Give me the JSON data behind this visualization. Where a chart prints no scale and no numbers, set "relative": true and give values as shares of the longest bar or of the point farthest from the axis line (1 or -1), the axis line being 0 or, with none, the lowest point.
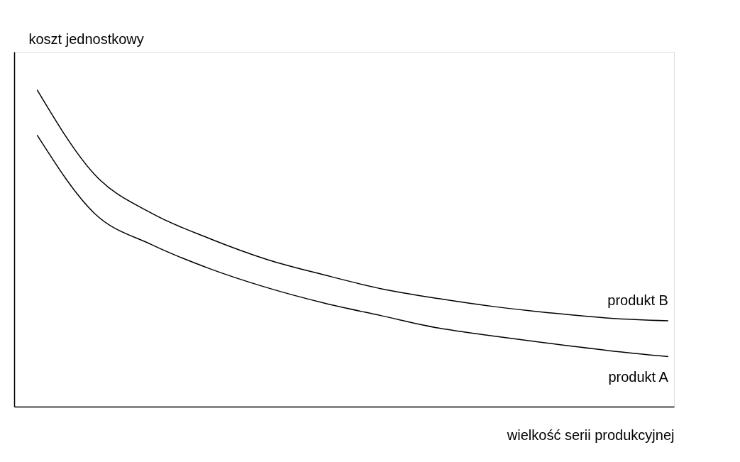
{
  "chart_data": {
    "type": "line",
    "relative": true,
    "tick_labels": false,
    "legend": false,
    "grid": false,
    "xlabel": "wielkość serii produkcyjnej",
    "ylabel": "koszt jednostkowy",
    "categories": [
      null,
      null,
      null,
      null,
      null,
      null,
      null,
      null,
      null,
      null,
      null,
      null
    ],
    "series": [
      {
        "name": "produkt B",
        "color": "#000000",
        "values": [
          1.0,
          0.733,
          0.61,
          0.531,
          0.465,
          0.416,
          0.372,
          0.341,
          0.315,
          0.295,
          0.279,
          0.271
        ]
      },
      {
        "name": "produkt A",
        "color": "#000000",
        "values": [
          0.857,
          0.61,
          0.511,
          0.436,
          0.376,
          0.327,
          0.287,
          0.248,
          0.222,
          0.198,
          0.176,
          0.158
        ]
      }
    ]
  }
}
